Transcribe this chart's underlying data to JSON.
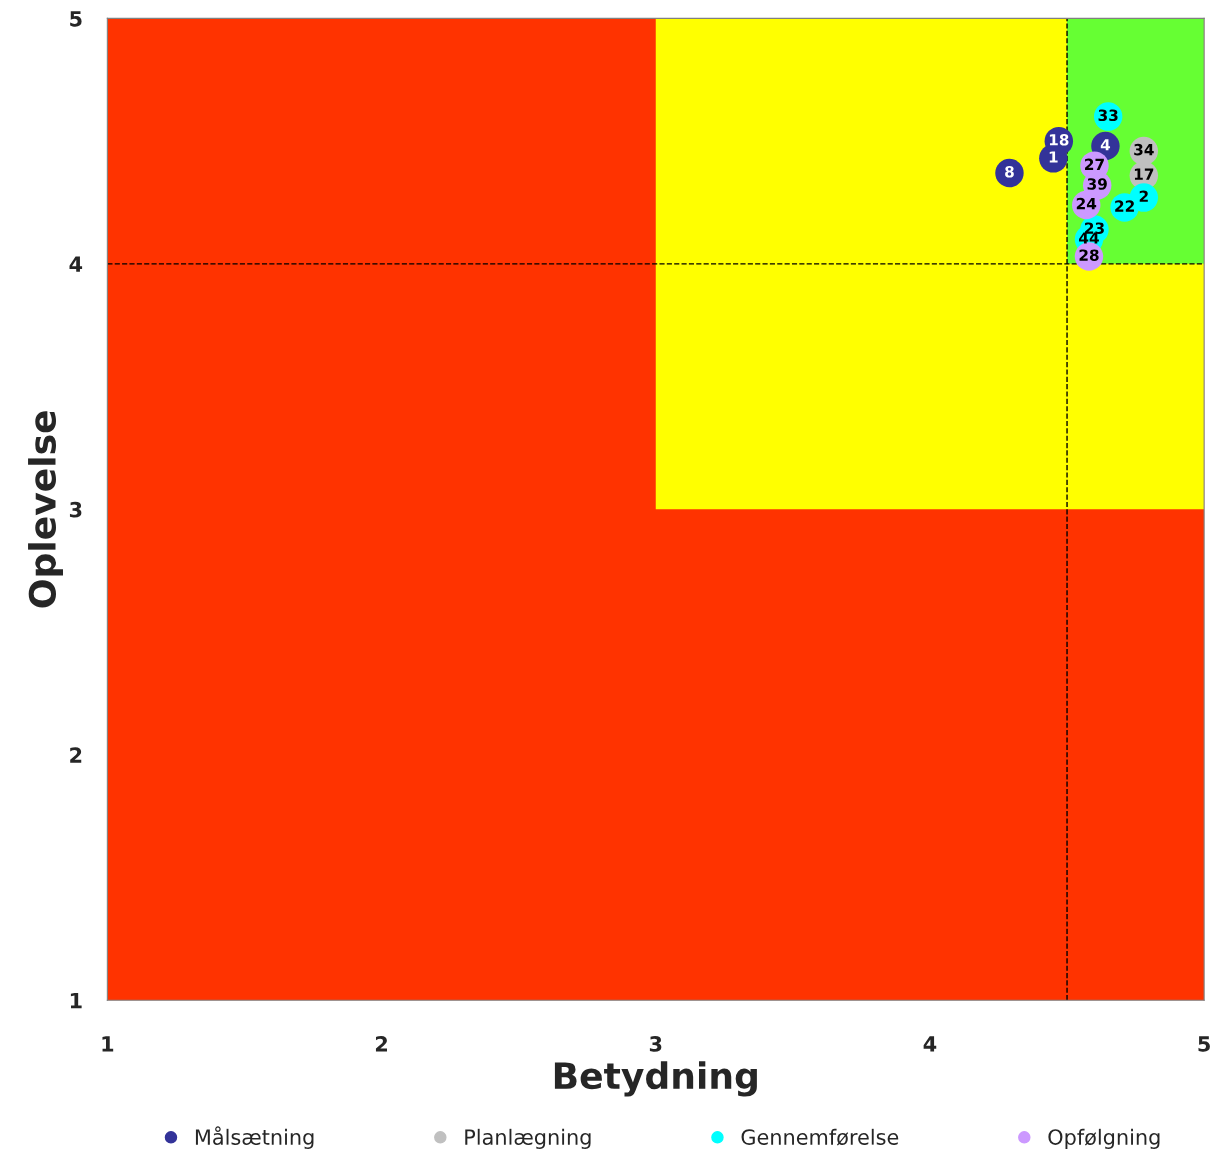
{
  "chart_data": {
    "type": "scatter",
    "xlabel": "Betydning",
    "ylabel": "Oplevelse",
    "xlim": [
      1,
      5
    ],
    "ylim": [
      1,
      5
    ],
    "xticks": [
      1,
      2,
      3,
      4,
      5
    ],
    "yticks": [
      1,
      2,
      3,
      4,
      5
    ],
    "grid": false,
    "legend": "bottom",
    "marker": "circle",
    "ref_lines": [
      {
        "axis": "x",
        "value": 4.5,
        "line_style": "dashed",
        "color": "#000000"
      },
      {
        "axis": "y",
        "value": 4,
        "line_style": "dashed",
        "color": "#000000"
      }
    ],
    "series": [
      {
        "name": "Målsætning",
        "color": "#333399",
        "x": [
          4.29,
          4.45,
          4.47,
          4.64
        ],
        "values": [
          4.37,
          4.43,
          4.5,
          4.48
        ]
      },
      {
        "name": "Planlægning",
        "color": "#c0c0c0",
        "x": [
          4.78,
          4.78
        ],
        "values": [
          4.46,
          4.36
        ]
      },
      {
        "name": "Gennemførelse",
        "color": "#00ffff",
        "x": [
          4.65,
          4.71,
          4.6,
          4.58,
          4.78
        ],
        "values": [
          4.6,
          4.23,
          4.14,
          4.1,
          4.27
        ]
      },
      {
        "name": "Opfølgning",
        "color": "#cc99ff",
        "x": [
          4.58,
          4.57,
          4.61,
          4.6
        ],
        "values": [
          4.03,
          4.24,
          4.32,
          4.4
        ]
      }
    ],
    "annotations": [
      {
        "text": "8",
        "x": 4.29,
        "y": 4.37
      },
      {
        "text": "1",
        "x": 4.45,
        "y": 4.43
      },
      {
        "text": "18",
        "x": 4.47,
        "y": 4.5
      },
      {
        "text": "4",
        "x": 4.64,
        "y": 4.48
      },
      {
        "text": "34",
        "x": 4.78,
        "y": 4.46
      },
      {
        "text": "17",
        "x": 4.78,
        "y": 4.36
      },
      {
        "text": "33",
        "x": 4.65,
        "y": 4.6
      },
      {
        "text": "22",
        "x": 4.71,
        "y": 4.23
      },
      {
        "text": "23",
        "x": 4.6,
        "y": 4.14
      },
      {
        "text": "44",
        "x": 4.58,
        "y": 4.1
      },
      {
        "text": "2",
        "x": 4.78,
        "y": 4.27
      },
      {
        "text": "28",
        "x": 4.58,
        "y": 4.03
      },
      {
        "text": "24",
        "x": 4.57,
        "y": 4.24
      },
      {
        "text": "39",
        "x": 4.61,
        "y": 4.32
      },
      {
        "text": "27",
        "x": 4.6,
        "y": 4.4
      }
    ]
  }
}
